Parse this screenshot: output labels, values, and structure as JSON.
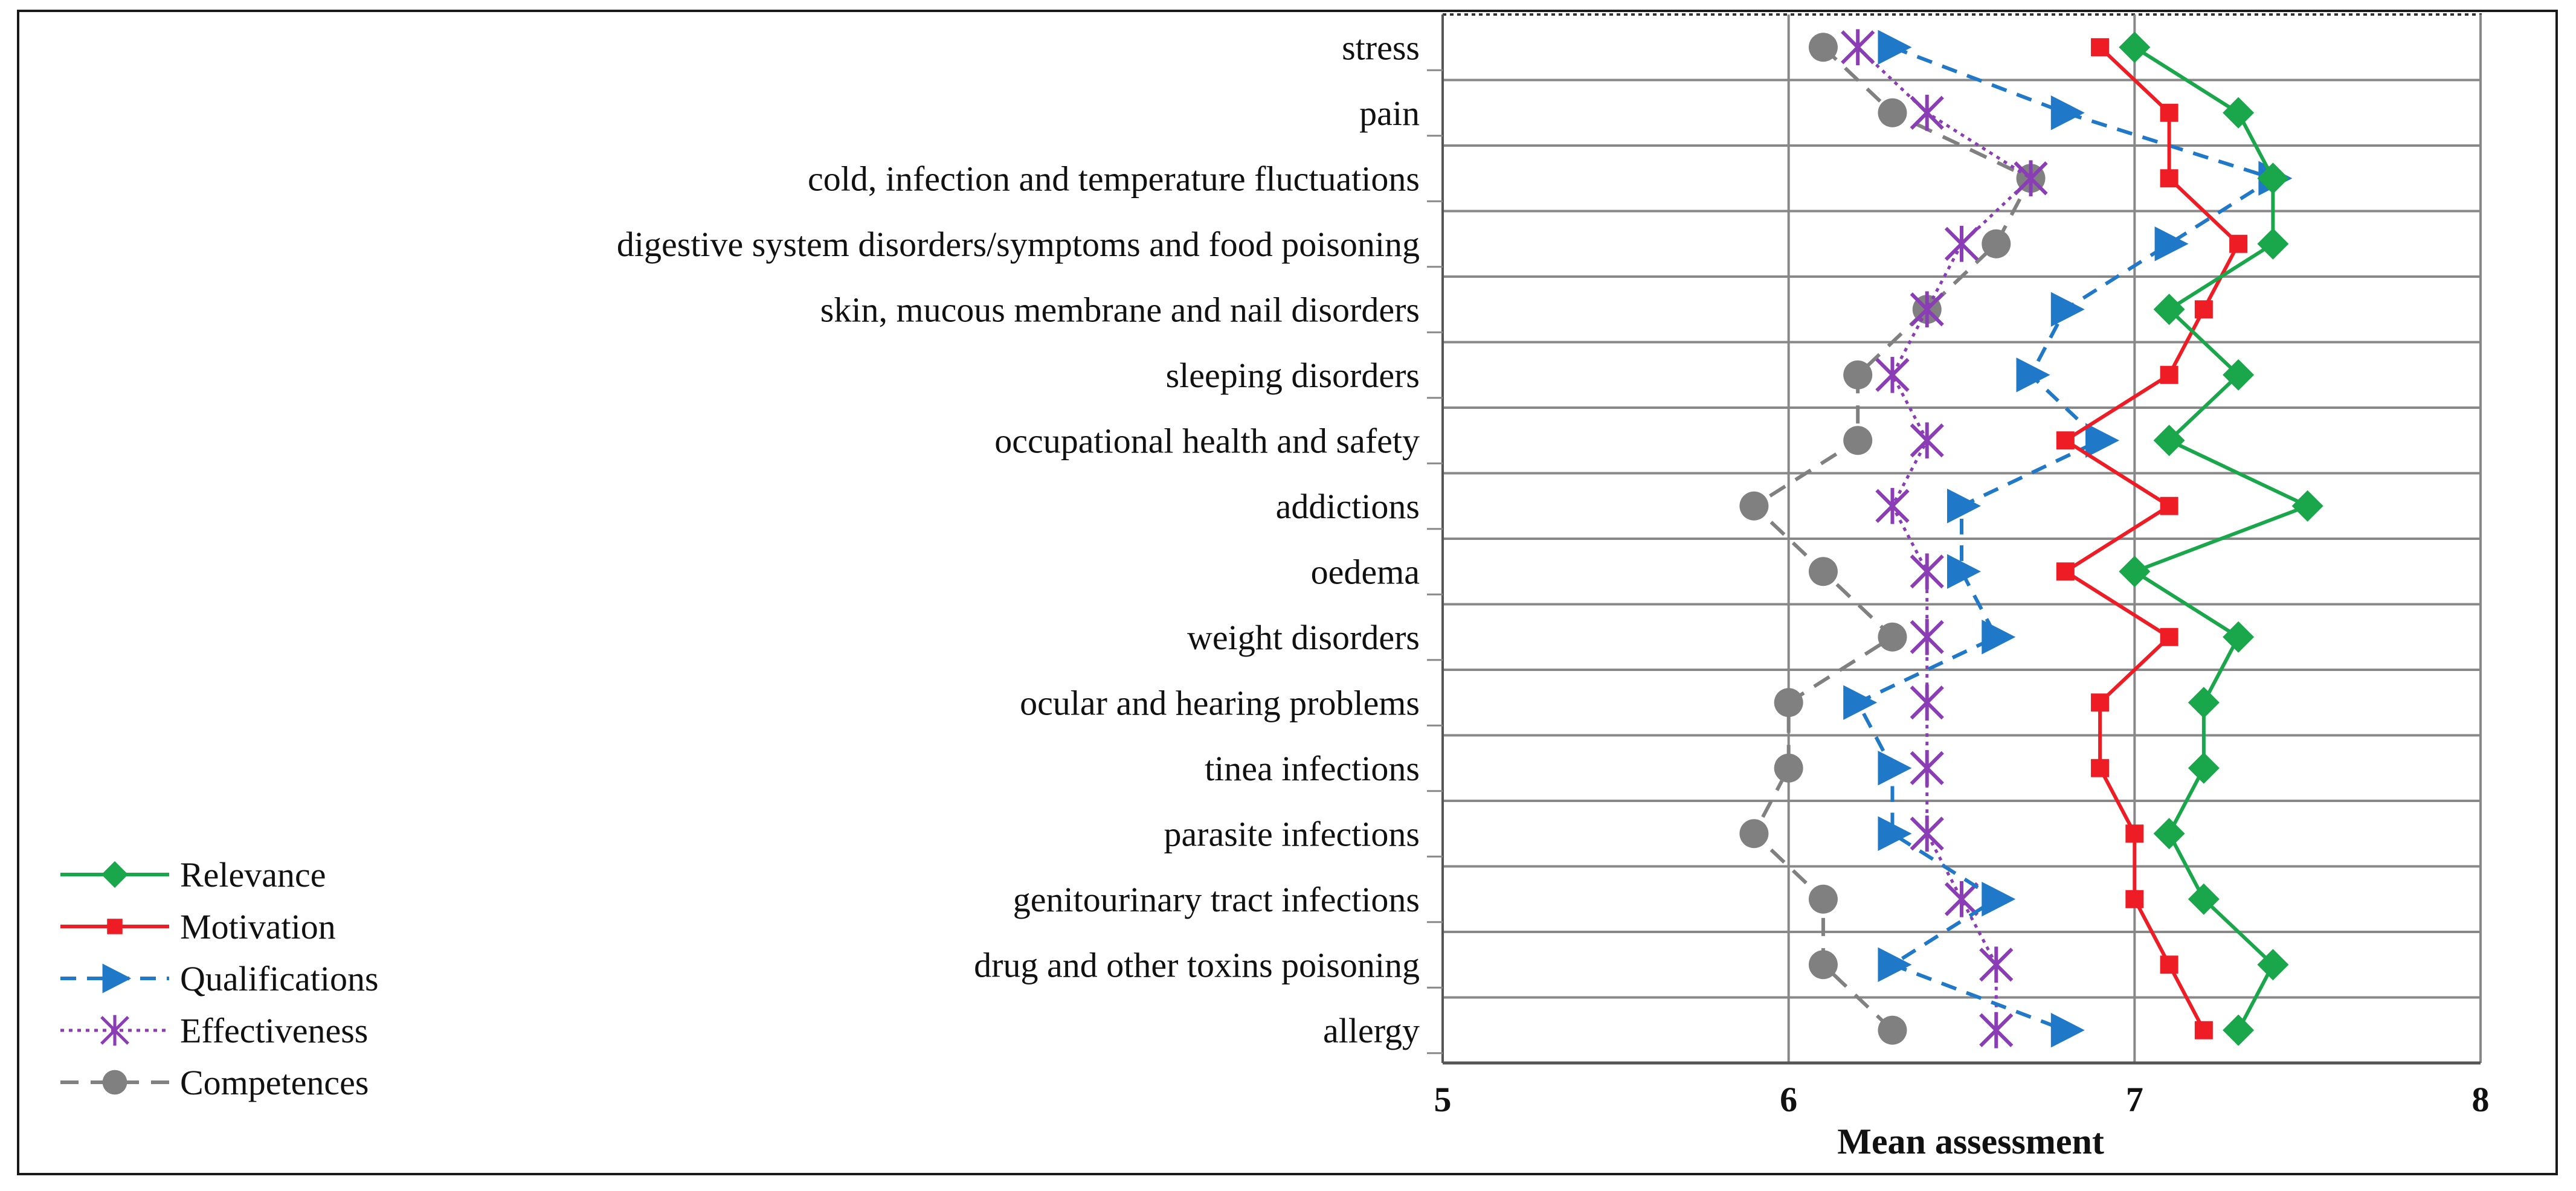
{
  "chart_data": {
    "type": "line",
    "orientation": "horizontal",
    "title": "",
    "xlabel": "Mean assessment",
    "ylabel": "",
    "xlim": [
      5,
      8
    ],
    "xticks": [
      5,
      6,
      7,
      8
    ],
    "grid": true,
    "legend_position": "bottom-left",
    "categories": [
      "stress",
      "pain",
      "cold, infection and temperature fluctuations",
      "digestive system disorders/symptoms and food poisoning",
      "skin, mucous membrane and nail disorders",
      "sleeping disorders",
      "occupational health and safety",
      "addictions",
      "oedema",
      "weight disorders",
      "ocular and hearing problems",
      "tinea infections",
      "parasite infections",
      "genitourinary tract infections",
      "drug and other toxins poisoning",
      "allergy"
    ],
    "series": [
      {
        "name": "Relevance",
        "color": "#1aa64a",
        "dash": "solid",
        "marker": "diamond",
        "values": [
          7.0,
          7.3,
          7.4,
          7.4,
          7.1,
          7.3,
          7.1,
          7.5,
          7.0,
          7.3,
          7.2,
          7.2,
          7.1,
          7.2,
          7.4,
          7.3
        ]
      },
      {
        "name": "Motivation",
        "color": "#ee1c24",
        "dash": "solid",
        "marker": "square",
        "values": [
          6.9,
          7.1,
          7.1,
          7.3,
          7.2,
          7.1,
          6.8,
          7.1,
          6.8,
          7.1,
          6.9,
          6.9,
          7.0,
          7.0,
          7.1,
          7.2
        ]
      },
      {
        "name": "Qualifications",
        "color": "#1f78c8",
        "dash": "dashed",
        "marker": "triangle",
        "values": [
          6.3,
          6.8,
          7.4,
          7.1,
          6.8,
          6.7,
          6.9,
          6.5,
          6.5,
          6.6,
          6.2,
          6.3,
          6.3,
          6.6,
          6.3,
          6.8
        ]
      },
      {
        "name": "Effectiveness",
        "color": "#8a3db5",
        "dash": "dotted",
        "marker": "asterisk",
        "values": [
          6.2,
          6.4,
          6.7,
          6.5,
          6.4,
          6.3,
          6.4,
          6.3,
          6.4,
          6.4,
          6.4,
          6.4,
          6.4,
          6.5,
          6.6,
          6.6
        ]
      },
      {
        "name": "Competences",
        "color": "#808080",
        "dash": "longdash",
        "marker": "circle",
        "values": [
          6.1,
          6.3,
          6.7,
          6.6,
          6.4,
          6.2,
          6.2,
          5.9,
          6.1,
          6.3,
          6.0,
          6.0,
          5.9,
          6.1,
          6.1,
          6.3
        ]
      }
    ]
  }
}
